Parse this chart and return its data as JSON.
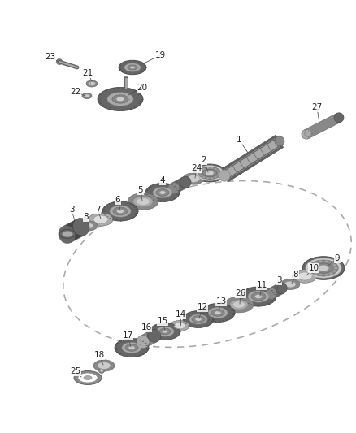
{
  "bg_color": "#ffffff",
  "figsize": [
    4.38,
    5.33
  ],
  "dpi": 100,
  "gray1": "#444444",
  "gray2": "#666666",
  "gray3": "#888888",
  "gray4": "#aaaaaa",
  "gray5": "#cccccc",
  "gray6": "#dddddd",
  "white": "#ffffff",
  "dash_color": "#aaaaaa",
  "label_color": "#222222",
  "line_color": "#555555"
}
